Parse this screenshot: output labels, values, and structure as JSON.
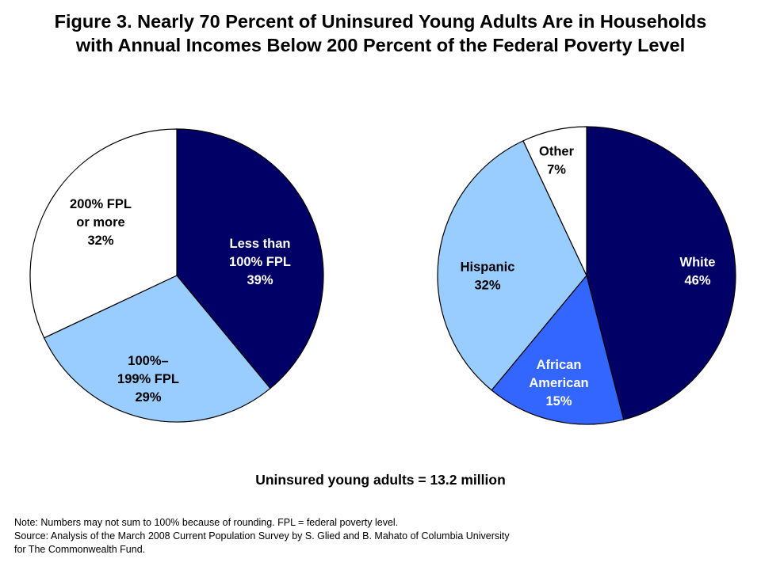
{
  "title": {
    "line1": "Figure 3. Nearly 70 Percent of Uninsured Young Adults Are in Households",
    "line2": "with Annual Incomes Below 200 Percent of the Federal Poverty Level"
  },
  "chart_data": [
    {
      "type": "pie",
      "title": "",
      "slices": [
        {
          "label": [
            "Less than",
            "100% FPL"
          ],
          "value": 39,
          "value_label": "39%",
          "color": "#000066",
          "text_color": "#ffffff"
        },
        {
          "label": [
            "100%–",
            "199% FPL"
          ],
          "value": 29,
          "value_label": "29%",
          "color": "#99ccff",
          "text_color": "#000000"
        },
        {
          "label": [
            "200% FPL",
            "or more"
          ],
          "value": 32,
          "value_label": "32%",
          "color": "#ffffff",
          "text_color": "#000000"
        }
      ]
    },
    {
      "type": "pie",
      "title": "",
      "slices": [
        {
          "label": [
            "White"
          ],
          "value": 46,
          "value_label": "46%",
          "color": "#000066",
          "text_color": "#ffffff"
        },
        {
          "label": [
            "African",
            "American"
          ],
          "value": 15,
          "value_label": "15%",
          "color": "#3366ff",
          "text_color": "#ffffff"
        },
        {
          "label": [
            "Hispanic"
          ],
          "value": 32,
          "value_label": "32%",
          "color": "#99ccff",
          "text_color": "#000000"
        },
        {
          "label": [
            "Other"
          ],
          "value": 7,
          "value_label": "7%",
          "color": "#ffffff",
          "text_color": "#000000"
        }
      ]
    }
  ],
  "total_label": "Uninsured young adults = 13.2 million",
  "notes": {
    "line1": "Note: Numbers may not sum to 100% because of rounding. FPL = federal poverty level.",
    "line2": "Source: Analysis of the March 2008 Current Population Survey by S. Glied and B. Mahato of Columbia University",
    "line3": "for The Commonwealth Fund."
  }
}
